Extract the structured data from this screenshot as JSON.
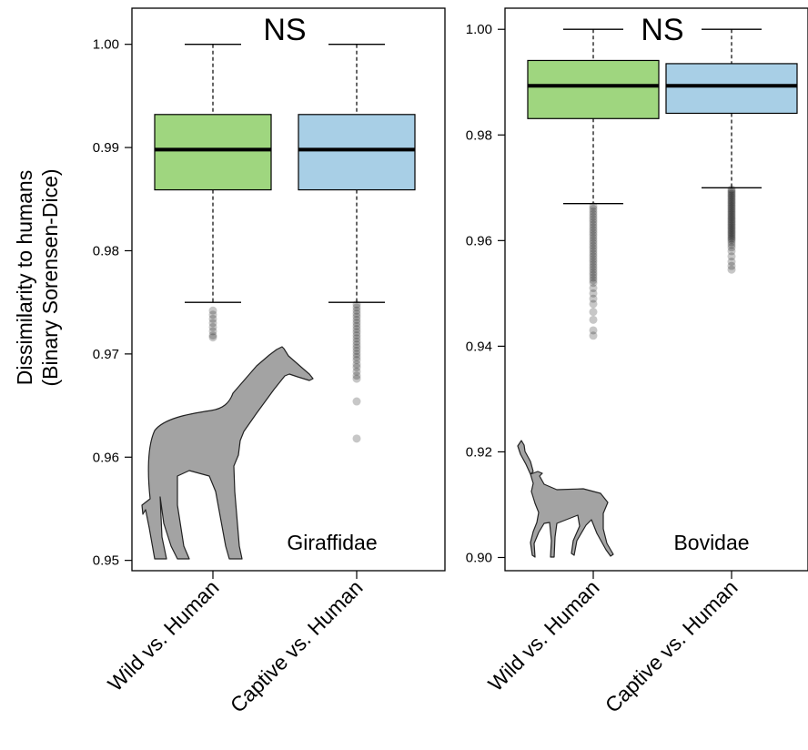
{
  "chart_data": [
    {
      "type": "box",
      "panel_label": "Giraffidae",
      "significance": "NS",
      "ylabel": "Dissimilarity to humans",
      "ylabel_sub": "(Binary Sorensen-Dice)",
      "ylim": [
        0.949,
        1.0035
      ],
      "yticks": [
        0.95,
        0.96,
        0.97,
        0.98,
        0.99,
        1.0
      ],
      "ytick_labels": [
        "0.95",
        "0.96",
        "0.97",
        "0.98",
        "0.99",
        "1.00"
      ],
      "categories": [
        "Wild vs. Human",
        "Captive vs. Human"
      ],
      "boxes": [
        {
          "name": "Wild vs. Human",
          "color": "#9fd67f",
          "whisker_low": 0.975,
          "q1": 0.9859,
          "median": 0.9898,
          "q3": 0.9932,
          "whisker_high": 1.0,
          "outliers": [
            0.9742,
            0.9738,
            0.9734,
            0.973,
            0.9726,
            0.9722,
            0.9718,
            0.9716
          ]
        },
        {
          "name": "Captive vs. Human",
          "color": "#a8cfe6",
          "whisker_low": 0.975,
          "q1": 0.9859,
          "median": 0.9898,
          "q3": 0.9932,
          "whisker_high": 1.0,
          "outliers": [
            0.9748,
            0.9745,
            0.9742,
            0.9739,
            0.9736,
            0.9733,
            0.973,
            0.9727,
            0.9724,
            0.9721,
            0.9718,
            0.9715,
            0.9712,
            0.9709,
            0.9706,
            0.9703,
            0.97,
            0.9697,
            0.9694,
            0.969,
            0.9687,
            0.9683,
            0.9679,
            0.9676,
            0.9654,
            0.9618
          ]
        }
      ],
      "grid": false
    },
    {
      "type": "box",
      "panel_label": "Bovidae",
      "significance": "NS",
      "ylim": [
        0.8975,
        1.004
      ],
      "yticks": [
        0.9,
        0.92,
        0.94,
        0.96,
        0.98,
        1.0
      ],
      "ytick_labels": [
        "0.90",
        "0.92",
        "0.94",
        "0.96",
        "0.98",
        "1.00"
      ],
      "categories": [
        "Wild vs. Human",
        "Captive vs. Human"
      ],
      "boxes": [
        {
          "name": "Wild vs. Human",
          "color": "#9fd67f",
          "whisker_low": 0.967,
          "q1": 0.9831,
          "median": 0.9893,
          "q3": 0.9941,
          "whisker_high": 1.0,
          "outliers": [
            0.9665,
            0.966,
            0.9655,
            0.965,
            0.9645,
            0.964,
            0.9635,
            0.963,
            0.9625,
            0.962,
            0.9615,
            0.961,
            0.9605,
            0.96,
            0.9595,
            0.959,
            0.9585,
            0.958,
            0.9575,
            0.957,
            0.9565,
            0.956,
            0.9555,
            0.955,
            0.9545,
            0.954,
            0.9535,
            0.953,
            0.9525,
            0.952,
            0.951,
            0.95,
            0.949,
            0.948,
            0.9465,
            0.945,
            0.943,
            0.942
          ]
        },
        {
          "name": "Captive vs. Human",
          "color": "#a8cfe6",
          "whisker_low": 0.97,
          "q1": 0.9841,
          "median": 0.9893,
          "q3": 0.9935,
          "whisker_high": 1.0,
          "outliers": [
            0.9697,
            0.9694,
            0.9691,
            0.9688,
            0.9685,
            0.9682,
            0.9679,
            0.9676,
            0.9673,
            0.967,
            0.9667,
            0.9664,
            0.9661,
            0.9658,
            0.9655,
            0.9652,
            0.9649,
            0.9646,
            0.9643,
            0.964,
            0.9637,
            0.9634,
            0.9631,
            0.9628,
            0.9625,
            0.9622,
            0.9619,
            0.9616,
            0.9613,
            0.961,
            0.9607,
            0.9604,
            0.9601,
            0.9597,
            0.9592,
            0.9587,
            0.958,
            0.957,
            0.956,
            0.9552,
            0.9545
          ]
        }
      ],
      "grid": false
    }
  ]
}
